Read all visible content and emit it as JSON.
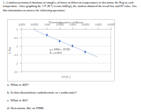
{
  "question": {
    "number": "1.",
    "text": "A student performed titrations of samples of borax at different temperatures to determine the Ksp at each temperature. After graphing the 1/T (K⁻¹) versus ln(Ksp), the student obtained the trend line and R² value. Use this information to answer the following questions:"
  },
  "chart_data": {
    "type": "scatter",
    "title": "Thermodynamics of Borax",
    "x_label": "1/T (K⁻¹)",
    "y_label": "ln Ksp",
    "xlim": [
      0.0029,
      0.00325
    ],
    "xticks": [
      0.0029,
      0.00295,
      0.003,
      0.00305,
      0.0031,
      0.00315,
      0.0032,
      0.00325
    ],
    "ylim": [
      -2.5,
      0
    ],
    "yticks": [
      -2.5,
      -2,
      -1.5,
      -1,
      -0.5,
      0
    ],
    "grid": true,
    "series": [
      {
        "type": "scatter",
        "marker": "diamond",
        "color": "#4472c4",
        "x": [
          0.003,
          0.00305,
          0.0031,
          0.00315
        ],
        "values": [
          -0.35,
          -0.71,
          -0.99,
          -1.34
        ]
      },
      {
        "type": "line",
        "line_style": "dotted",
        "color": "#4472c4",
        "x": [
          0.00295,
          0.0032
        ],
        "values": [
          -0.05,
          -1.65
        ]
      }
    ],
    "annotations": [
      "y = -6384x + 18.784",
      "R² = 0.9913"
    ]
  },
  "parts": [
    {
      "label": "a.",
      "text": "What is ΔH?"
    },
    {
      "label": "b.",
      "text": "Is this dissolution endothermic or exothermic?"
    },
    {
      "label": "c.",
      "text": "What is ΔS?"
    },
    {
      "label": "d.",
      "text": "Determine ΔG at 298K."
    }
  ]
}
